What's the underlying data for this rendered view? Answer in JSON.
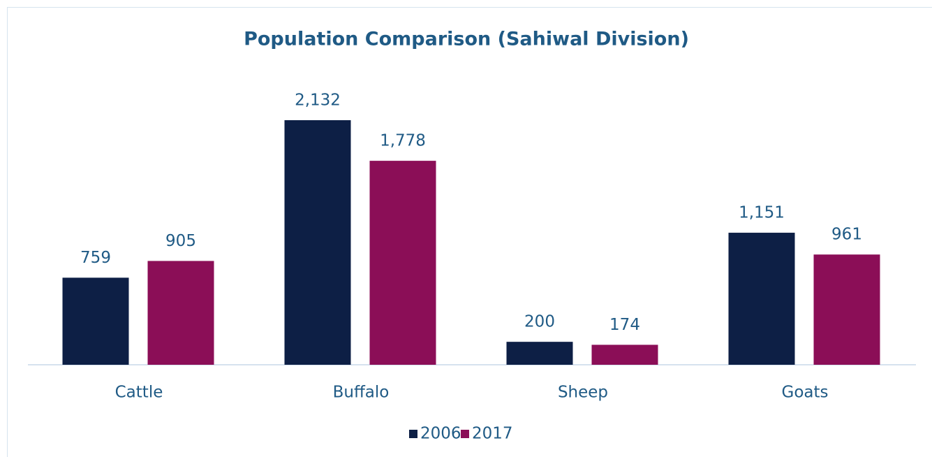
{
  "chart_data": {
    "type": "bar",
    "title": "Population Comparison (Sahiwal Division)",
    "categories": [
      "Cattle",
      "Buffalo",
      "Sheep",
      "Goats"
    ],
    "series": [
      {
        "name": "2006",
        "color": "#0d1f45",
        "values": [
          759,
          2132,
          200,
          1151
        ],
        "value_labels": [
          "759",
          "2,132",
          "200",
          "1,151"
        ]
      },
      {
        "name": "2017",
        "color": "#8b0e57",
        "values": [
          905,
          1778,
          174,
          961
        ],
        "value_labels": [
          "905",
          "1,778",
          "174",
          "961"
        ]
      }
    ],
    "legend": "bottom"
  }
}
